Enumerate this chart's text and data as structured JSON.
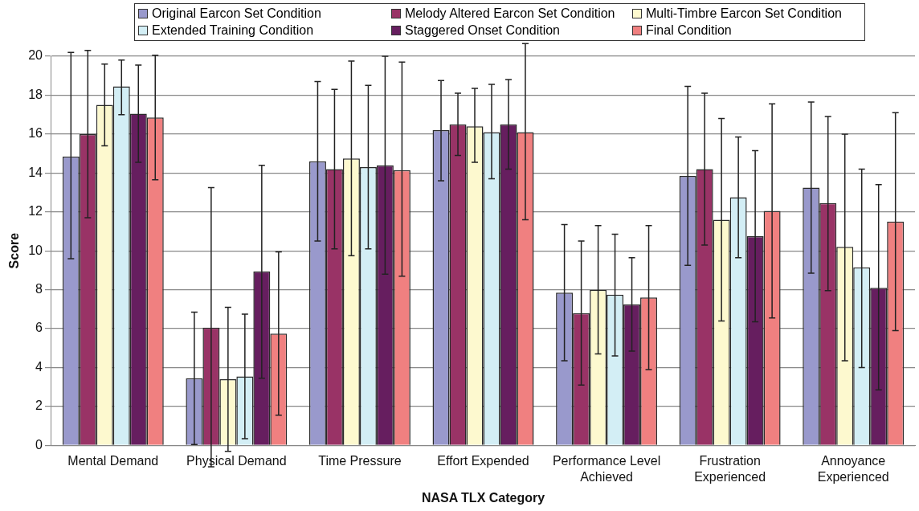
{
  "chart_data": {
    "type": "bar",
    "xlabel": "NASA TLX Category",
    "ylabel": "Score",
    "categories": [
      "Mental Demand",
      "Physical Demand",
      "Time Pressure",
      "Effort Expended",
      "Performance Level Achieved",
      "Frustration Experienced",
      "Annoyance Experienced"
    ],
    "ylim": [
      0,
      20
    ],
    "yticks": [
      0,
      2,
      4,
      6,
      8,
      10,
      12,
      14,
      16,
      18,
      20
    ],
    "grid": "y",
    "legend": "top",
    "series": [
      {
        "name": "Original Earcon Set Condition",
        "color": "#9999cc",
        "values": [
          14.85,
          3.45,
          14.6,
          16.2,
          7.85,
          13.85,
          13.25
        ],
        "errors": [
          [
            9.6,
            20.2
          ],
          [
            0.05,
            6.85
          ],
          [
            10.5,
            18.7
          ],
          [
            13.6,
            18.75
          ],
          [
            4.35,
            11.35
          ],
          [
            9.25,
            18.45
          ],
          [
            8.85,
            17.65
          ]
        ]
      },
      {
        "name": "Melody Altered Earcon Set Condition",
        "color": "#993366",
        "values": [
          16.0,
          6.05,
          14.2,
          16.5,
          6.8,
          14.2,
          12.45
        ],
        "errors": [
          [
            11.7,
            20.3
          ],
          [
            -1.1,
            13.25
          ],
          [
            10.1,
            18.3
          ],
          [
            14.9,
            18.1
          ],
          [
            3.1,
            10.5
          ],
          [
            10.3,
            18.1
          ],
          [
            7.95,
            16.9
          ]
        ]
      },
      {
        "name": "Multi-Timbre Earcon Set Condition",
        "color": "#fdf9cf",
        "values": [
          17.5,
          3.4,
          14.75,
          16.4,
          8.0,
          11.6,
          10.2
        ],
        "errors": [
          [
            15.4,
            19.6
          ],
          [
            -0.3,
            7.1
          ],
          [
            9.75,
            19.75
          ],
          [
            14.55,
            18.35
          ],
          [
            4.7,
            11.3
          ],
          [
            6.4,
            16.8
          ],
          [
            4.35,
            16.0
          ]
        ]
      },
      {
        "name": "Extended Training Condition",
        "color": "#d3eef5",
        "values": [
          18.45,
          3.55,
          14.3,
          16.1,
          7.75,
          12.75,
          9.15
        ],
        "errors": [
          [
            17.0,
            19.8
          ],
          [
            0.35,
            6.75
          ],
          [
            10.1,
            18.5
          ],
          [
            13.7,
            18.55
          ],
          [
            4.6,
            10.85
          ],
          [
            9.65,
            15.85
          ],
          [
            4.0,
            14.2
          ]
        ]
      },
      {
        "name": "Staggered Onset Condition",
        "color": "#661e5f",
        "values": [
          17.05,
          8.95,
          14.4,
          16.5,
          7.25,
          10.75,
          8.1
        ],
        "errors": [
          [
            14.55,
            19.55
          ],
          [
            3.45,
            14.4
          ],
          [
            8.8,
            20.0
          ],
          [
            14.2,
            18.8
          ],
          [
            4.85,
            9.65
          ],
          [
            6.35,
            15.15
          ],
          [
            2.85,
            13.4
          ]
        ]
      },
      {
        "name": "Final Condition",
        "color": "#f08080",
        "values": [
          16.85,
          5.75,
          14.15,
          16.1,
          7.6,
          12.05,
          11.5
        ],
        "errors": [
          [
            13.65,
            20.05
          ],
          [
            1.55,
            9.95
          ],
          [
            8.7,
            19.7
          ],
          [
            11.6,
            20.65
          ],
          [
            3.9,
            11.3
          ],
          [
            6.55,
            17.55
          ],
          [
            5.9,
            17.1
          ]
        ]
      }
    ]
  }
}
